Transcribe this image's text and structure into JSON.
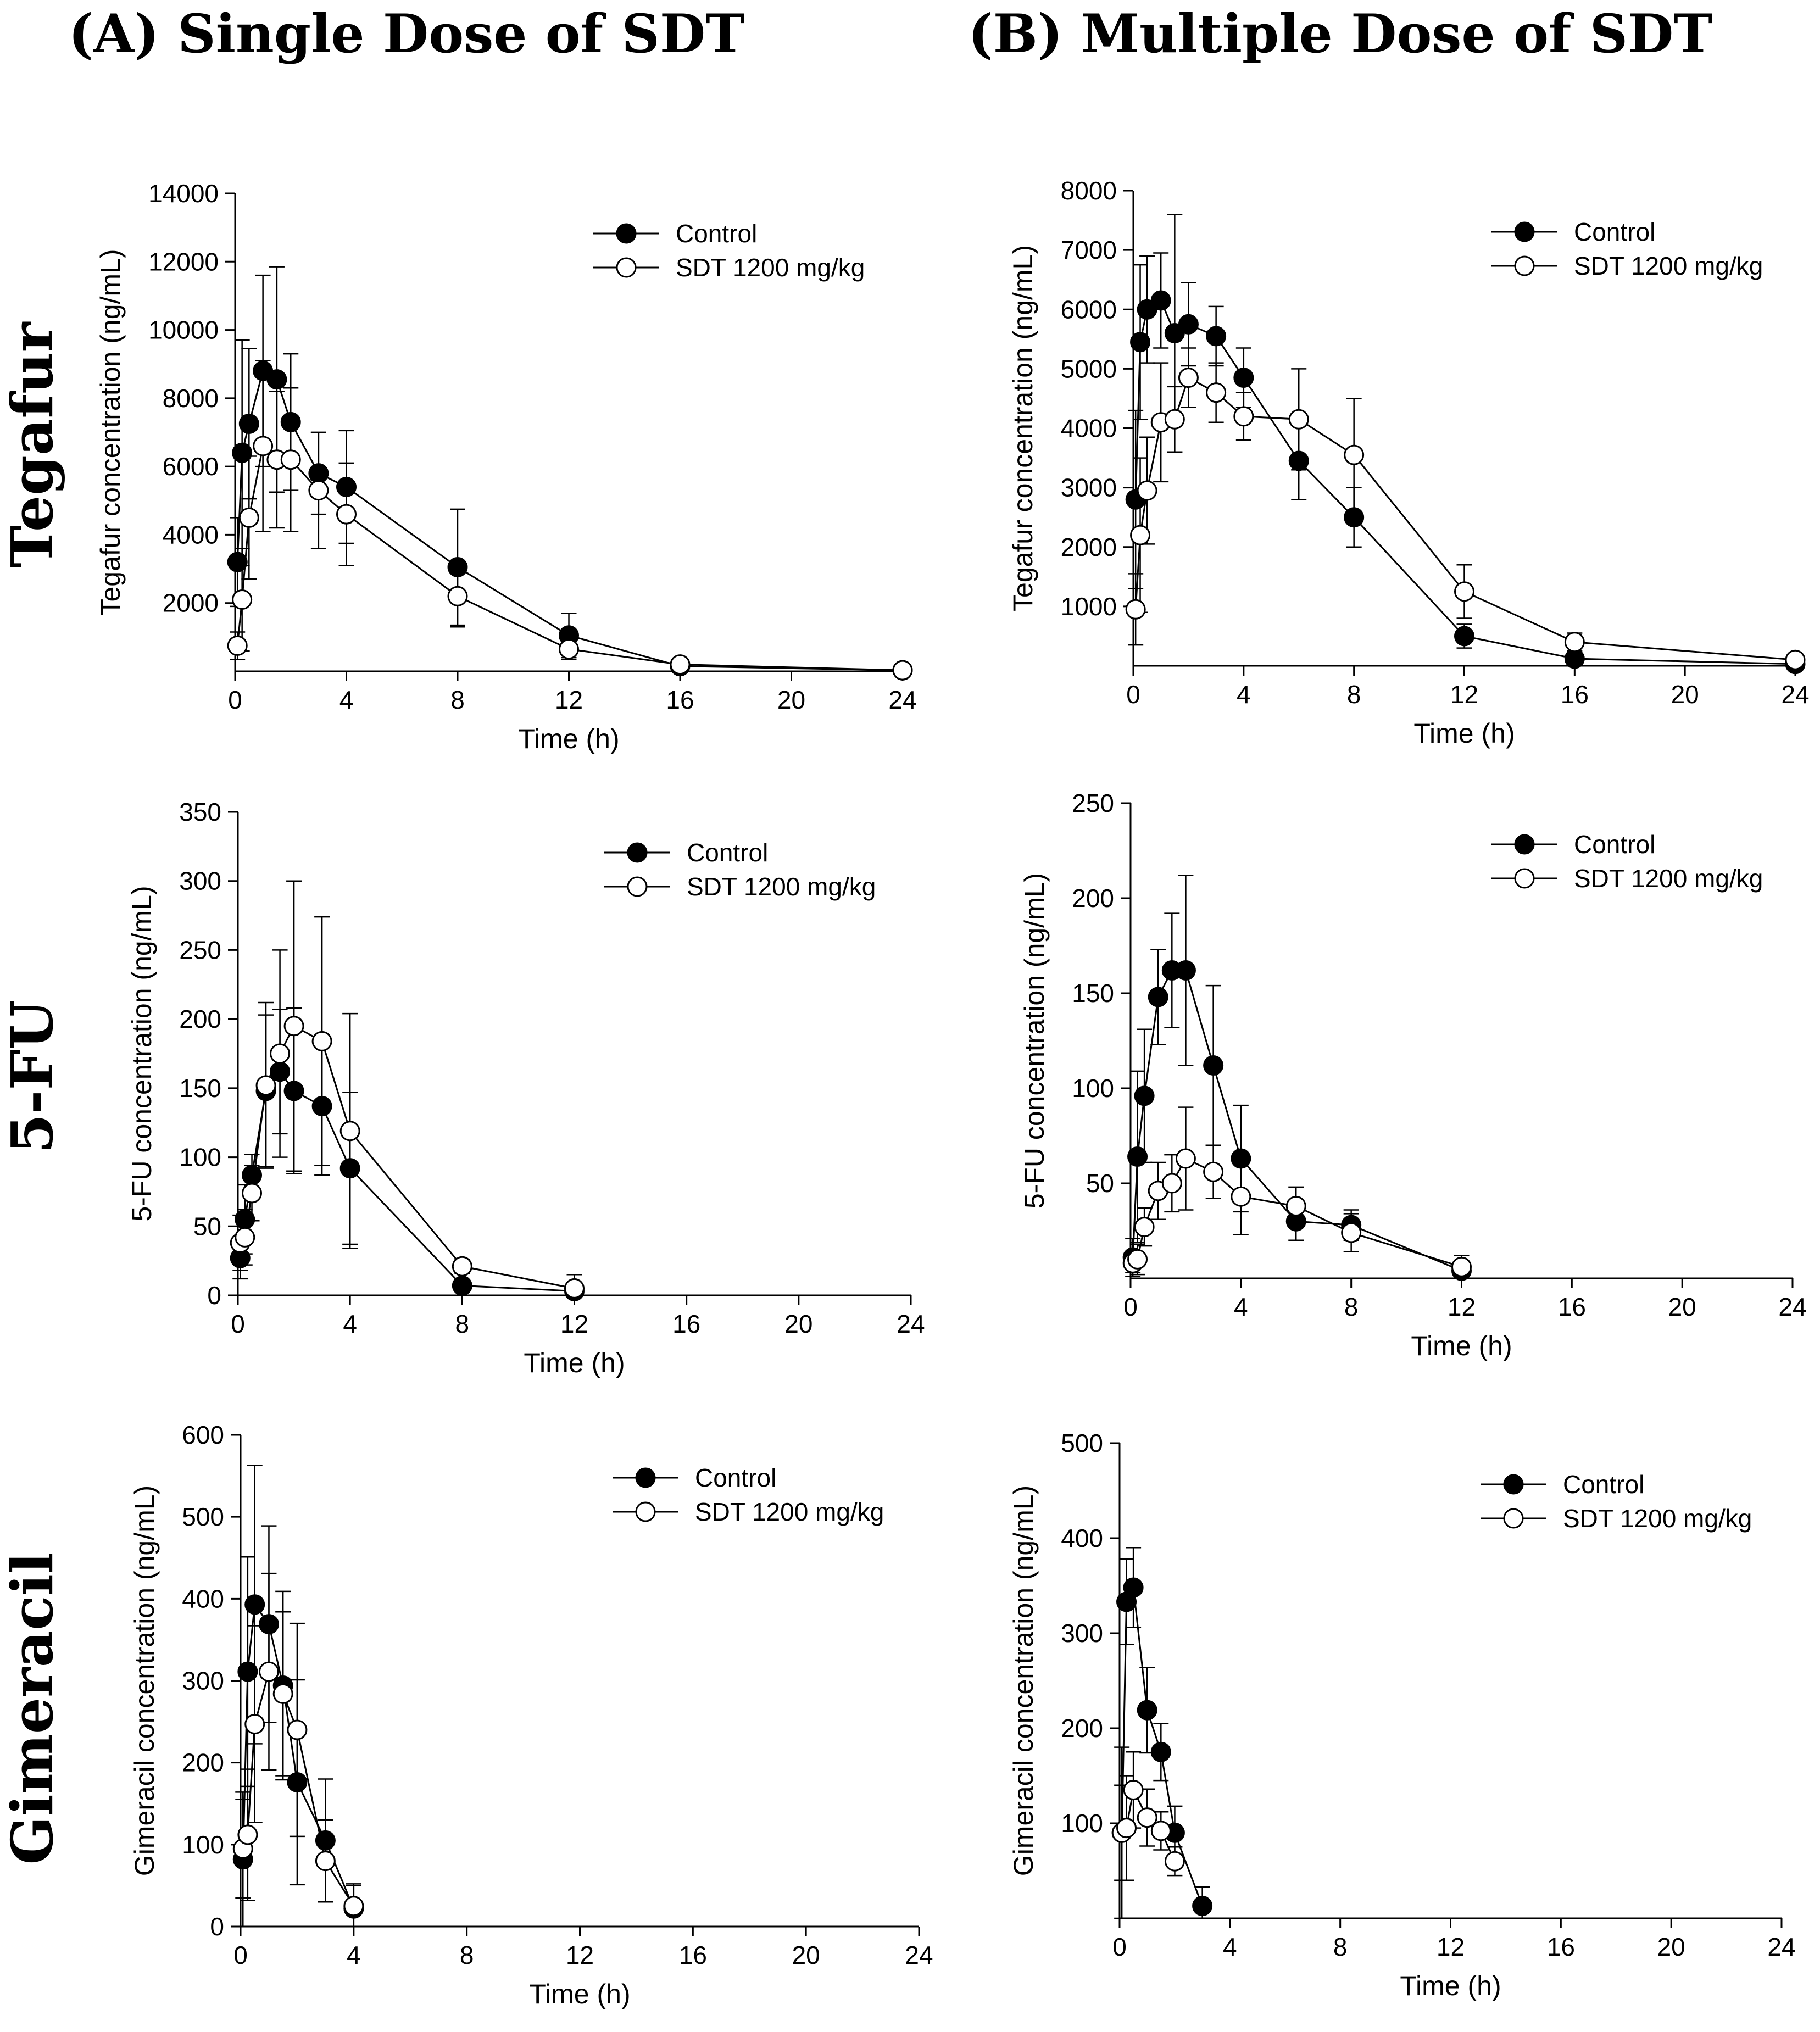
{
  "figure": {
    "column_headers": [
      "(A) Single Dose of SDT",
      "(B) Multiple Dose of SDT"
    ],
    "row_labels": [
      "Tegafur",
      "5-FU",
      "Gimeracil"
    ]
  },
  "chart_data": [
    {
      "id": "tegafur-single",
      "type": "line",
      "title": "",
      "xlabel": "Time (h)",
      "ylabel": "Tegafur concentration (ng/mL)",
      "xlim": [
        0,
        24
      ],
      "ylim": [
        0,
        14000
      ],
      "xticks": [
        0,
        4,
        8,
        12,
        16,
        20,
        24
      ],
      "yticks": [
        2000,
        4000,
        6000,
        8000,
        10000,
        12000,
        14000
      ],
      "legend_position": "top-right",
      "series": [
        {
          "name": "Control",
          "marker": "filled-circle",
          "x": [
            0.083,
            0.25,
            0.5,
            1,
            1.5,
            2,
            3,
            4,
            8,
            12,
            16,
            24
          ],
          "y": [
            3200,
            6400,
            7250,
            8800,
            8550,
            7300,
            5800,
            5400,
            3050,
            1050,
            150,
            30
          ],
          "err": [
            1300,
            3300,
            2200,
            2800,
            3300,
            2000,
            1200,
            1650,
            1700,
            650,
            120,
            30
          ]
        },
        {
          "name": "SDT 1200 mg/kg",
          "marker": "open-circle",
          "x": [
            0.083,
            0.25,
            0.5,
            1,
            1.5,
            2,
            3,
            4,
            8,
            12,
            16,
            24
          ],
          "y": [
            750,
            2100,
            4500,
            6600,
            6200,
            6200,
            5300,
            4600,
            2200,
            650,
            200,
            30
          ],
          "err": [
            400,
            1500,
            1800,
            2500,
            2000,
            2100,
            1700,
            1500,
            900,
            300,
            150,
            30
          ]
        }
      ]
    },
    {
      "id": "tegafur-multiple",
      "type": "line",
      "title": "",
      "xlabel": "Time (h)",
      "ylabel": "Tegafur concentration (ng/mL)",
      "xlim": [
        0,
        24
      ],
      "ylim": [
        0,
        8000
      ],
      "xticks": [
        0,
        4,
        8,
        12,
        16,
        20,
        24
      ],
      "yticks": [
        1000,
        2000,
        3000,
        4000,
        5000,
        6000,
        7000,
        8000
      ],
      "legend_position": "top-right",
      "series": [
        {
          "name": "Control",
          "marker": "filled-circle",
          "x": [
            0.083,
            0.25,
            0.5,
            1,
            1.5,
            2,
            3,
            4,
            6,
            8,
            12,
            16,
            24
          ],
          "y": [
            2800,
            5450,
            6000,
            6150,
            5600,
            5750,
            5550,
            4850,
            3450,
            2500,
            500,
            120,
            30
          ],
          "err": [
            1500,
            1300,
            900,
            800,
            2000,
            700,
            500,
            500,
            650,
            500,
            200,
            80,
            20
          ]
        },
        {
          "name": "SDT 1200 mg/kg",
          "marker": "open-circle",
          "x": [
            0.083,
            0.25,
            0.5,
            1,
            1.5,
            2,
            3,
            4,
            6,
            8,
            12,
            16,
            24
          ],
          "y": [
            950,
            2200,
            2950,
            4100,
            4150,
            4850,
            4600,
            4200,
            4150,
            3550,
            1250,
            400,
            100
          ],
          "err": [
            600,
            1300,
            900,
            1000,
            550,
            500,
            500,
            400,
            850,
            950,
            450,
            150,
            50
          ]
        }
      ]
    },
    {
      "id": "fu-single",
      "type": "line",
      "title": "",
      "xlabel": "Time (h)",
      "ylabel": "5-FU concentration (ng/mL)",
      "xlim": [
        0,
        24
      ],
      "ylim": [
        0,
        350
      ],
      "xticks": [
        0,
        4,
        8,
        12,
        16,
        20,
        24
      ],
      "yticks": [
        0,
        50,
        100,
        150,
        200,
        250,
        300,
        350
      ],
      "legend_position": "top-right",
      "series": [
        {
          "name": "Control",
          "marker": "filled-circle",
          "x": [
            0.083,
            0.25,
            0.5,
            1,
            1.5,
            2,
            3,
            4,
            8,
            12
          ],
          "y": [
            27,
            55,
            87,
            148,
            162,
            148,
            137,
            92,
            7,
            3
          ],
          "err": [
            15,
            25,
            15,
            55,
            45,
            60,
            50,
            55,
            4,
            2
          ]
        },
        {
          "name": "SDT 1200 mg/kg",
          "marker": "open-circle",
          "x": [
            0.083,
            0.25,
            0.5,
            1,
            1.5,
            2,
            3,
            4,
            8,
            12
          ],
          "y": [
            38,
            42,
            74,
            152,
            175,
            195,
            184,
            119,
            21,
            5
          ],
          "err": [
            20,
            20,
            20,
            60,
            75,
            105,
            90,
            85,
            5,
            10
          ]
        }
      ]
    },
    {
      "id": "fu-multiple",
      "type": "line",
      "title": "",
      "xlabel": "Time (h)",
      "ylabel": "5-FU concentration (ng/mL)",
      "xlim": [
        0,
        24
      ],
      "ylim": [
        0,
        250
      ],
      "xticks": [
        0,
        4,
        8,
        12,
        16,
        20,
        24
      ],
      "yticks": [
        50,
        100,
        150,
        200,
        250
      ],
      "legend_position": "top-right",
      "series": [
        {
          "name": "Control",
          "marker": "filled-circle",
          "x": [
            0.083,
            0.25,
            0.5,
            1,
            1.5,
            2,
            3,
            4,
            6,
            8,
            12
          ],
          "y": [
            11,
            64,
            96,
            148,
            162,
            162,
            112,
            63,
            30,
            28,
            4
          ],
          "err": [
            10,
            45,
            35,
            25,
            30,
            50,
            42,
            28,
            10,
            8,
            4
          ]
        },
        {
          "name": "SDT 1200 mg/kg",
          "marker": "open-circle",
          "x": [
            0.083,
            0.25,
            0.5,
            1,
            1.5,
            2,
            3,
            4,
            6,
            8,
            12
          ],
          "y": [
            8,
            10,
            27,
            46,
            50,
            63,
            56,
            43,
            38,
            24,
            6
          ],
          "err": [
            5,
            8,
            10,
            15,
            15,
            27,
            14,
            20,
            10,
            10,
            6
          ]
        }
      ]
    },
    {
      "id": "gimeracil-single",
      "type": "line",
      "title": "",
      "xlabel": "Time (h)",
      "ylabel": "Gimeracil concentration (ng/mL)",
      "xlim": [
        0,
        24
      ],
      "ylim": [
        0,
        600
      ],
      "xticks": [
        0,
        4,
        8,
        12,
        16,
        20,
        24
      ],
      "yticks": [
        0,
        100,
        200,
        300,
        400,
        500,
        600
      ],
      "legend_position": "top-right",
      "series": [
        {
          "name": "Control",
          "marker": "filled-circle",
          "x": [
            0.083,
            0.25,
            0.5,
            1,
            1.5,
            2,
            3,
            4
          ],
          "y": [
            82,
            311,
            393,
            369,
            294,
            176,
            105,
            22
          ],
          "err": [
            82,
            140,
            170,
            120,
            115,
            125,
            75,
            30
          ]
        },
        {
          "name": "SDT 1200 mg/kg",
          "marker": "open-circle",
          "x": [
            0.083,
            0.25,
            0.5,
            1,
            1.5,
            2,
            3,
            4
          ],
          "y": [
            95,
            112,
            247,
            311,
            284,
            240,
            80,
            25
          ],
          "err": [
            60,
            80,
            120,
            120,
            100,
            130,
            50,
            25
          ]
        }
      ]
    },
    {
      "id": "gimeracil-multiple",
      "type": "line",
      "title": "",
      "xlabel": "Time (h)",
      "ylabel": "Gimeracil concentration (ng/mL)",
      "xlim": [
        0,
        24
      ],
      "ylim": [
        0,
        500
      ],
      "xticks": [
        0,
        4,
        8,
        12,
        16,
        20,
        24
      ],
      "yticks": [
        100,
        200,
        300,
        400,
        500
      ],
      "legend_position": "top-right",
      "series": [
        {
          "name": "Control",
          "marker": "filled-circle",
          "x": [
            0.083,
            0.25,
            0.5,
            1,
            1.5,
            2,
            3
          ],
          "y": [
            90,
            333,
            348,
            219,
            175,
            90,
            13
          ],
          "err": [
            90,
            45,
            42,
            45,
            30,
            28,
            20
          ]
        },
        {
          "name": "SDT 1200 mg/kg",
          "marker": "open-circle",
          "x": [
            0.083,
            0.25,
            0.5,
            1,
            1.5,
            2
          ],
          "y": [
            90,
            95,
            135,
            106,
            92,
            60
          ],
          "err": [
            50,
            55,
            40,
            30,
            20,
            15
          ]
        }
      ]
    }
  ]
}
